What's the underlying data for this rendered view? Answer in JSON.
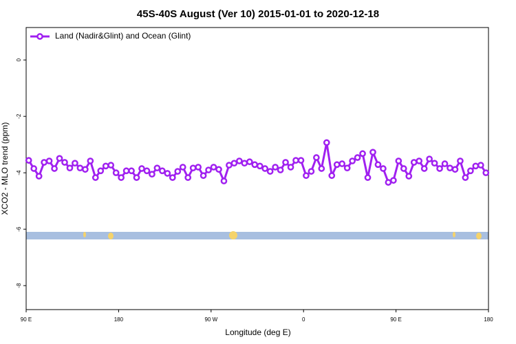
{
  "chart_data": {
    "type": "line",
    "title": "45S-40S August (Ver 10)   2015-01-01 to 2020-12-18",
    "xlabel": "Longitude (deg E)",
    "ylabel": "XCO2 - MLO trend (ppm)",
    "xlim": [
      90,
      540
    ],
    "ylim": [
      -8.85,
      1.15
    ],
    "xticks": [
      {
        "value": 90,
        "label": "90 E"
      },
      180,
      {
        "value": 270,
        "label": "90 W"
      },
      {
        "value": 360,
        "label": "0"
      },
      {
        "value": 450,
        "label": "90 E"
      },
      {
        "value": 540,
        "label": "180"
      }
    ],
    "yticks": [
      0,
      -2,
      -4,
      -6,
      -8
    ],
    "legend": "top-left",
    "x": [
      92.5,
      97.5,
      102.5,
      107.5,
      112.5,
      117.5,
      122.5,
      127.5,
      132.5,
      137.5,
      142.5,
      147.5,
      152.5,
      157.5,
      162.5,
      167.5,
      172.5,
      177.5,
      182.5,
      187.5,
      192.5,
      197.5,
      202.5,
      207.5,
      212.5,
      217.5,
      222.5,
      227.5,
      232.5,
      237.5,
      242.5,
      247.5,
      252.5,
      257.5,
      262.5,
      267.5,
      272.5,
      277.5,
      282.5,
      287.5,
      292.5,
      297.5,
      302.5,
      307.5,
      312.5,
      317.5,
      322.5,
      327.5,
      332.5,
      337.5,
      342.5,
      347.5,
      352.5,
      357.5,
      362.5,
      367.5,
      372.5,
      377.5,
      382.5,
      387.5,
      392.5,
      397.5,
      402.5,
      407.5,
      412.5,
      417.5,
      422.5,
      427.5,
      432.5,
      437.5,
      442.5,
      447.5,
      452.5,
      457.5,
      462.5,
      467.5,
      472.5,
      477.5,
      482.5,
      487.5,
      492.5,
      497.5,
      502.5,
      507.5,
      512.5,
      517.5,
      522.5,
      527.5,
      532.5,
      537.5
    ],
    "series": [
      {
        "name": "Land (Nadir&Glint) and Ocean (Glint)",
        "color": "#a020f0",
        "values": [
          -3.56,
          -3.85,
          -4.12,
          -3.63,
          -3.58,
          -3.85,
          -3.49,
          -3.63,
          -3.83,
          -3.66,
          -3.83,
          -3.88,
          -3.58,
          -4.17,
          -3.93,
          -3.76,
          -3.73,
          -4.0,
          -4.17,
          -3.93,
          -3.93,
          -4.17,
          -3.85,
          -3.93,
          -4.05,
          -3.83,
          -3.93,
          -4.02,
          -4.17,
          -3.95,
          -3.8,
          -4.17,
          -3.83,
          -3.8,
          -4.1,
          -3.9,
          -3.8,
          -3.88,
          -4.29,
          -3.73,
          -3.66,
          -3.58,
          -3.66,
          -3.61,
          -3.71,
          -3.76,
          -3.85,
          -3.95,
          -3.8,
          -3.9,
          -3.63,
          -3.8,
          -3.56,
          -3.56,
          -4.1,
          -3.95,
          -3.46,
          -3.85,
          -2.93,
          -4.1,
          -3.71,
          -3.68,
          -3.83,
          -3.58,
          -3.46,
          -3.32,
          -4.17,
          -3.27,
          -3.71,
          -3.85,
          -4.34,
          -4.27,
          -3.58,
          -3.85,
          -4.12,
          -3.63,
          -3.58,
          -3.85,
          -3.51,
          -3.66,
          -3.85,
          -3.68,
          -3.83,
          -3.88,
          -3.58,
          -4.17,
          -3.93,
          -3.76,
          -3.73,
          -4.0
        ]
      }
    ]
  }
}
